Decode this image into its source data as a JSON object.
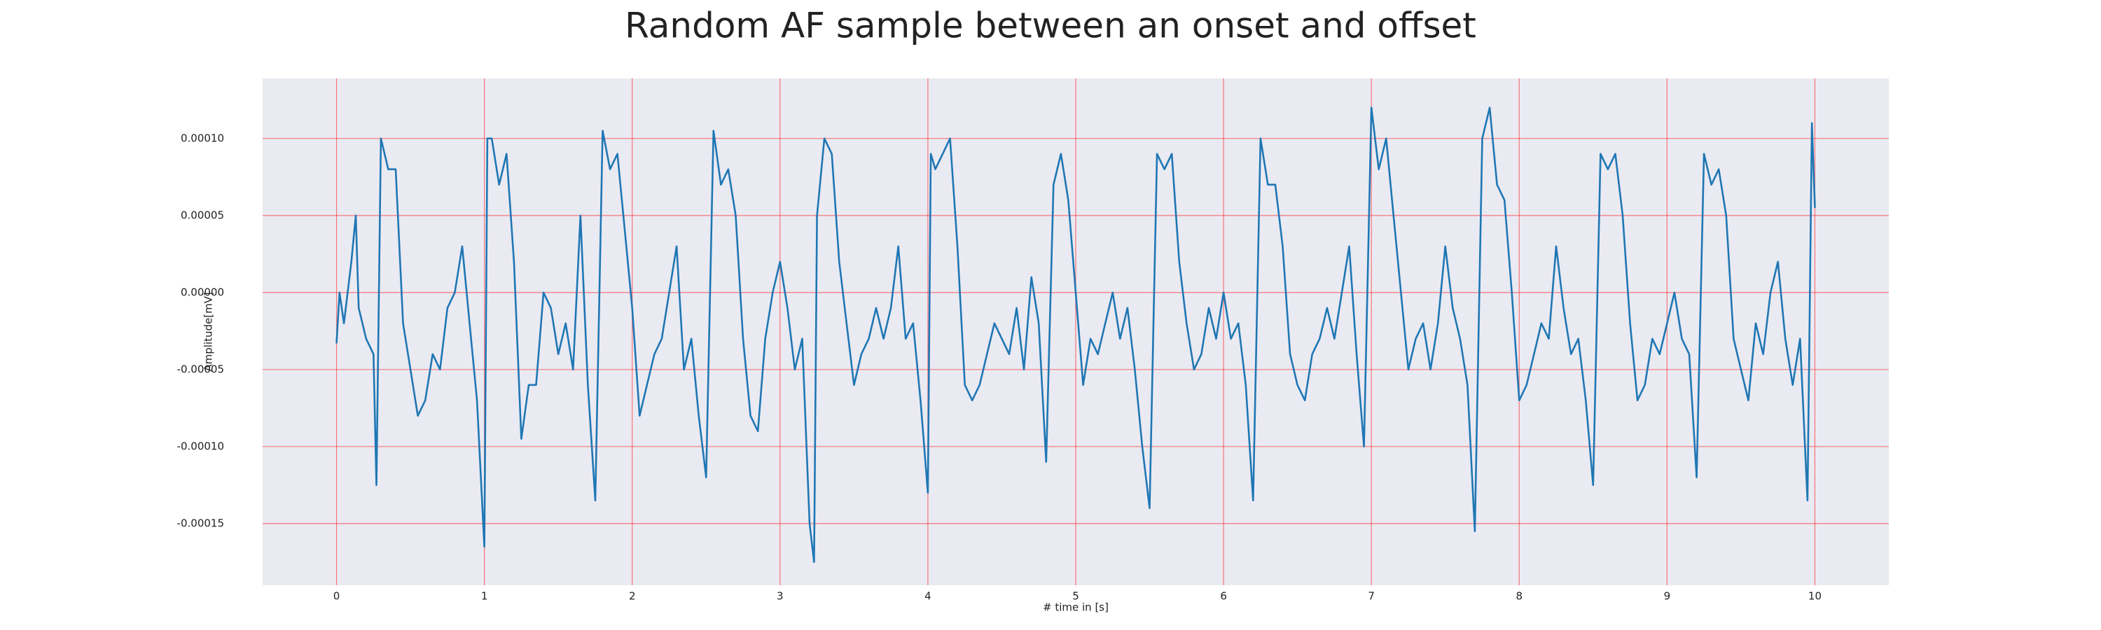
{
  "chart_data": {
    "type": "line",
    "title": "Random AF sample between an onset and offset",
    "xlabel": "# time in [s]",
    "ylabel": "Amplitude[mV]",
    "color": "#1f77b4",
    "grid": true,
    "grid_color": "#ff0000",
    "xlim": [
      -0.5,
      10.5
    ],
    "ylim": [
      -0.00019,
      0.000139
    ],
    "xticks": [
      0,
      1,
      2,
      3,
      4,
      5,
      6,
      7,
      8,
      9,
      10
    ],
    "yticks": [
      {
        "value": -0.00015,
        "label": "-0.00015"
      },
      {
        "value": -0.0001,
        "label": "-0.00010"
      },
      {
        "value": -5e-05,
        "label": "-0.00005"
      },
      {
        "value": 0,
        "label": "0.00000"
      },
      {
        "value": 5e-05,
        "label": "0.00005"
      },
      {
        "value": 0.0001,
        "label": "0.00010"
      }
    ],
    "x": [
      0,
      0.02,
      0.05,
      0.1,
      0.13,
      0.15,
      0.2,
      0.25,
      0.27,
      0.3,
      0.35,
      0.4,
      0.45,
      0.5,
      0.55,
      0.6,
      0.65,
      0.7,
      0.75,
      0.8,
      0.85,
      0.9,
      0.95,
      1.0,
      1.02,
      1.05,
      1.1,
      1.15,
      1.2,
      1.25,
      1.3,
      1.35,
      1.4,
      1.45,
      1.5,
      1.55,
      1.6,
      1.65,
      1.7,
      1.75,
      1.8,
      1.85,
      1.9,
      1.95,
      2.0,
      2.05,
      2.1,
      2.15,
      2.2,
      2.25,
      2.3,
      2.35,
      2.4,
      2.45,
      2.5,
      2.55,
      2.6,
      2.65,
      2.7,
      2.75,
      2.8,
      2.85,
      2.9,
      2.95,
      3.0,
      3.05,
      3.1,
      3.15,
      3.2,
      3.23,
      3.25,
      3.3,
      3.35,
      3.4,
      3.45,
      3.5,
      3.55,
      3.6,
      3.65,
      3.7,
      3.75,
      3.8,
      3.85,
      3.9,
      3.95,
      4.0,
      4.02,
      4.05,
      4.1,
      4.15,
      4.2,
      4.25,
      4.3,
      4.35,
      4.4,
      4.45,
      4.5,
      4.55,
      4.6,
      4.65,
      4.7,
      4.75,
      4.8,
      4.85,
      4.9,
      4.95,
      5.0,
      5.05,
      5.1,
      5.15,
      5.2,
      5.25,
      5.3,
      5.35,
      5.4,
      5.45,
      5.5,
      5.55,
      5.6,
      5.65,
      5.7,
      5.75,
      5.8,
      5.85,
      5.9,
      5.95,
      6.0,
      6.05,
      6.1,
      6.15,
      6.2,
      6.25,
      6.3,
      6.35,
      6.4,
      6.45,
      6.5,
      6.55,
      6.6,
      6.65,
      6.7,
      6.75,
      6.8,
      6.85,
      6.9,
      6.95,
      7.0,
      7.05,
      7.1,
      7.15,
      7.2,
      7.25,
      7.3,
      7.35,
      7.4,
      7.45,
      7.5,
      7.55,
      7.6,
      7.65,
      7.7,
      7.75,
      7.8,
      7.85,
      7.9,
      7.95,
      8.0,
      8.05,
      8.1,
      8.15,
      8.2,
      8.25,
      8.3,
      8.35,
      8.4,
      8.45,
      8.5,
      8.55,
      8.6,
      8.65,
      8.7,
      8.75,
      8.8,
      8.85,
      8.9,
      8.95,
      9.0,
      9.05,
      9.1,
      9.15,
      9.2,
      9.25,
      9.3,
      9.35,
      9.4,
      9.45,
      9.5,
      9.55,
      9.6,
      9.65,
      9.7,
      9.75,
      9.8,
      9.85,
      9.9,
      9.95,
      9.98,
      10.0
    ],
    "values": [
      -3.3e-05,
      0,
      -2e-05,
      2e-05,
      5e-05,
      -1e-05,
      -3e-05,
      -4e-05,
      -0.000125,
      0.0001,
      8e-05,
      8e-05,
      -2e-05,
      -5e-05,
      -8e-05,
      -7e-05,
      -4e-05,
      -5e-05,
      -1e-05,
      0,
      3e-05,
      -2e-05,
      -7e-05,
      -0.000165,
      0.0001,
      0.0001,
      7e-05,
      9e-05,
      2e-05,
      -9.5e-05,
      -6e-05,
      -6e-05,
      0,
      -1e-05,
      -4e-05,
      -2e-05,
      -5e-05,
      5e-05,
      -6e-05,
      -0.000135,
      0.000105,
      8e-05,
      9e-05,
      4e-05,
      -1e-05,
      -8e-05,
      -6e-05,
      -4e-05,
      -3e-05,
      0,
      3e-05,
      -5e-05,
      -3e-05,
      -8e-05,
      -0.00012,
      0.000105,
      7e-05,
      8e-05,
      5e-05,
      -3e-05,
      -8e-05,
      -9e-05,
      -3e-05,
      0,
      2e-05,
      -1e-05,
      -5e-05,
      -3e-05,
      -0.00015,
      -0.000175,
      5e-05,
      0.0001,
      9e-05,
      2e-05,
      -2e-05,
      -6e-05,
      -4e-05,
      -3e-05,
      -1e-05,
      -3e-05,
      -1e-05,
      3e-05,
      -3e-05,
      -2e-05,
      -7e-05,
      -0.00013,
      9e-05,
      8e-05,
      9e-05,
      0.0001,
      3e-05,
      -6e-05,
      -7e-05,
      -6e-05,
      -4e-05,
      -2e-05,
      -3e-05,
      -4e-05,
      -1e-05,
      -5e-05,
      1e-05,
      -2e-05,
      -0.00011,
      7e-05,
      9e-05,
      6e-05,
      0,
      -6e-05,
      -3e-05,
      -4e-05,
      -2e-05,
      0,
      -3e-05,
      -1e-05,
      -5e-05,
      -0.0001,
      -0.00014,
      9e-05,
      8e-05,
      9e-05,
      2e-05,
      -2e-05,
      -5e-05,
      -4e-05,
      -1e-05,
      -3e-05,
      0,
      -3e-05,
      -2e-05,
      -6e-05,
      -0.000135,
      0.0001,
      7e-05,
      7e-05,
      3e-05,
      -4e-05,
      -6e-05,
      -7e-05,
      -4e-05,
      -3e-05,
      -1e-05,
      -3e-05,
      0,
      3e-05,
      -4e-05,
      -0.0001,
      0.00012,
      8e-05,
      0.0001,
      5e-05,
      0,
      -5e-05,
      -3e-05,
      -2e-05,
      -5e-05,
      -2e-05,
      3e-05,
      -1e-05,
      -3e-05,
      -6e-05,
      -0.000155,
      0.0001,
      0.00012,
      7e-05,
      6e-05,
      0,
      -7e-05,
      -6e-05,
      -4e-05,
      -2e-05,
      -3e-05,
      3e-05,
      -1e-05,
      -4e-05,
      -3e-05,
      -7e-05,
      -0.000125,
      9e-05,
      8e-05,
      9e-05,
      5e-05,
      -2e-05,
      -7e-05,
      -6e-05,
      -3e-05,
      -4e-05,
      -2e-05,
      0,
      -3e-05,
      -4e-05,
      -0.00012,
      9e-05,
      7e-05,
      8e-05,
      5e-05,
      -3e-05,
      -5e-05,
      -7e-05,
      -2e-05,
      -4e-05,
      0,
      2e-05,
      -3e-05,
      -6e-05,
      -3e-05,
      -0.000135,
      0.00011,
      5.5e-05
    ]
  }
}
